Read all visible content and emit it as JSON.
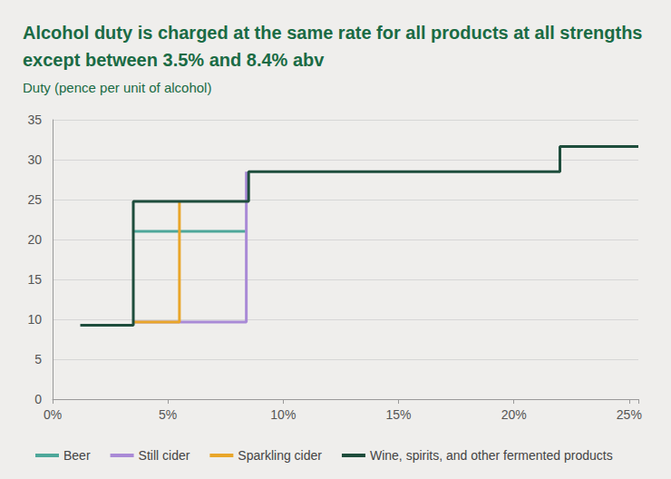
{
  "chart_data": {
    "type": "line",
    "title": "Alcohol duty is charged at the same rate for all products at all strengths except between 3.5% and 8.4% abv",
    "subtitle": "Duty (pence per unit of alcohol)",
    "xlim": [
      0,
      25.4
    ],
    "xticks": [
      {
        "value": 0,
        "label": "0%"
      },
      {
        "value": 5,
        "label": "5%"
      },
      {
        "value": 10,
        "label": "10%"
      },
      {
        "value": 15,
        "label": "15%"
      },
      {
        "value": 20,
        "label": "20%"
      },
      {
        "value": 25,
        "label": "25%"
      }
    ],
    "ylim": [
      0,
      35
    ],
    "yticks": [
      0,
      5,
      10,
      15,
      20,
      25,
      30,
      35
    ],
    "grid": true,
    "legend": "bottom",
    "line_style": "solid",
    "series": [
      {
        "name": "Beer",
        "color": "#4ea79a",
        "x": [
          3.5,
          8.4
        ],
        "values": [
          21.01,
          21.01
        ]
      },
      {
        "name": "Still cider",
        "color": "#a98ad6",
        "x": [
          3.5,
          8.4,
          8.4
        ],
        "values": [
          9.67,
          9.67,
          28.5
        ]
      },
      {
        "name": "Sparkling cider",
        "color": "#e9a62a",
        "x": [
          3.5,
          5.5,
          5.5
        ],
        "values": [
          9.67,
          9.67,
          24.77
        ]
      },
      {
        "name": "Wine, spirits, and other fermented products",
        "color": "#1e4d3c",
        "x": [
          1.2,
          3.5,
          3.5,
          8.5,
          8.5,
          22,
          22,
          25.4
        ],
        "values": [
          9.27,
          9.27,
          24.77,
          24.77,
          28.5,
          28.5,
          31.64,
          31.64
        ]
      }
    ]
  }
}
